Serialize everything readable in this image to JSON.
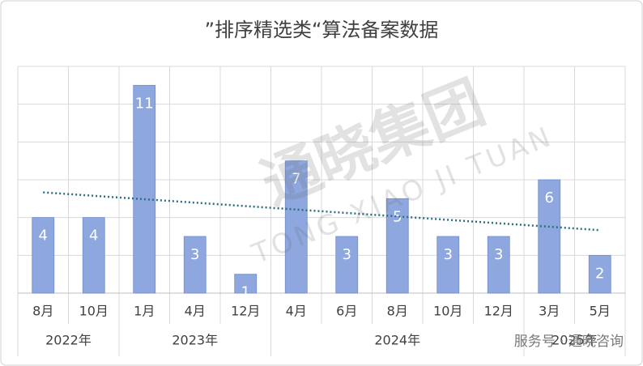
{
  "chart_data": {
    "type": "bar",
    "title": "”排序精选类“算法备案数据",
    "groups": [
      {
        "name": "2022年",
        "categories": [
          "8月",
          "10月"
        ]
      },
      {
        "name": "2023年",
        "categories": [
          "1月",
          "4月",
          "12月"
        ]
      },
      {
        "name": "2024年",
        "categories": [
          "4月",
          "6月",
          "8月",
          "10月",
          "12月"
        ]
      },
      {
        "name": "2025年",
        "categories": [
          "3月",
          "5月"
        ]
      }
    ],
    "values": [
      4,
      4,
      11,
      3,
      1,
      7,
      3,
      5,
      3,
      3,
      6,
      2
    ],
    "color": "#8ea7de",
    "trendline": true,
    "trend_color": "#2b6f80",
    "ylim": [
      0,
      12
    ],
    "yticks": [
      0,
      2,
      4,
      6,
      8,
      10,
      12
    ],
    "grid": true
  },
  "watermark": {
    "text": "通晓集团",
    "subtext": "TONG XIAO JI TUAN"
  },
  "footer": "服务号 · 通晓咨询"
}
